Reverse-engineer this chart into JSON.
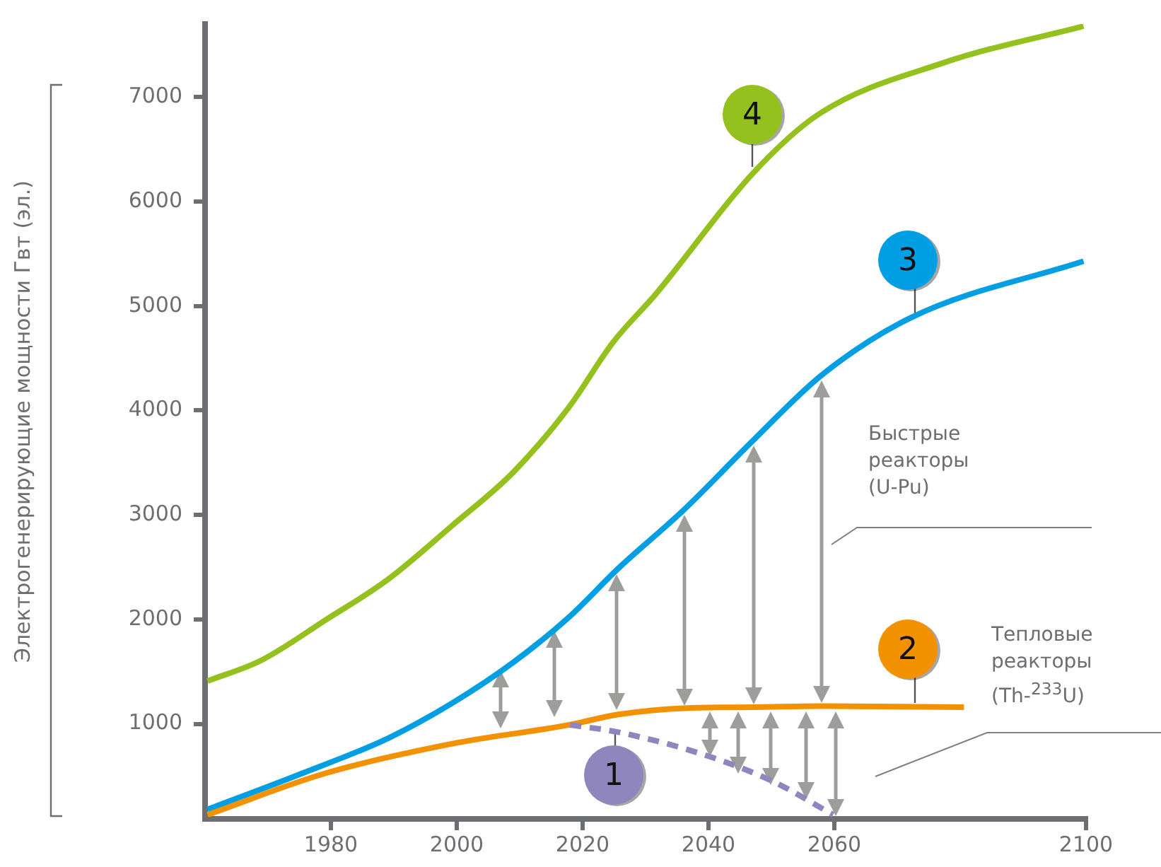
{
  "chart_data": {
    "type": "line",
    "ylabel": "Электрогенерирующие мощности Гвт (эл.)",
    "xlim": [
      1960,
      2100
    ],
    "xticks": [
      1980,
      2000,
      2020,
      2040,
      2060,
      2100
    ],
    "ylim": [
      90,
      7700
    ],
    "yticks": [
      1000,
      2000,
      3000,
      4000,
      5000,
      6000,
      7000
    ],
    "grid": false,
    "legend": false,
    "marker": "none",
    "annotations": [
      "Быстрые\nреакторы\n(U-Pu)",
      "Тепловые\nреакторы\n(Th-$^{233}$U)"
    ],
    "series": [
      {
        "name": "1",
        "color": "#8e86bd",
        "line_style": "dashed",
        "x": [
          2018,
          2025.7,
          2039,
          2050.2,
          2059.8
        ],
        "values": [
          990,
          920,
          710,
          450,
          130
        ]
      },
      {
        "name": "2",
        "color": "#f39200",
        "x": [
          1960.4,
          1979.3,
          1999.3,
          2017.8,
          2025.7,
          2036.1,
          2047.2,
          2058,
          2080.6
        ],
        "values": [
          130,
          530,
          810,
          990,
          1090,
          1150,
          1160,
          1170,
          1160
        ]
      },
      {
        "name": "3",
        "color": "#009fe3",
        "x": [
          1960.4,
          1975.6,
          1989,
          1999.3,
          2009,
          2017.8,
          2025.7,
          2036.1,
          2047.2,
          2058,
          2072.2,
          2099.6
        ],
        "values": [
          180,
          530,
          860,
          1200,
          1590,
          2020,
          2490,
          3050,
          3720,
          4340,
          4890,
          5430
        ]
      },
      {
        "name": "4",
        "color": "#95c11f",
        "x": [
          1960.4,
          1969,
          1979.3,
          1989,
          1999.3,
          2009,
          2017.8,
          2024.8,
          2031.7,
          2047.2,
          2057.6,
          2077.4,
          2099.6
        ],
        "values": [
          1410,
          1610,
          2000,
          2380,
          2900,
          3410,
          4030,
          4650,
          5120,
          6280,
          6840,
          7330,
          7680
        ]
      }
    ]
  }
}
